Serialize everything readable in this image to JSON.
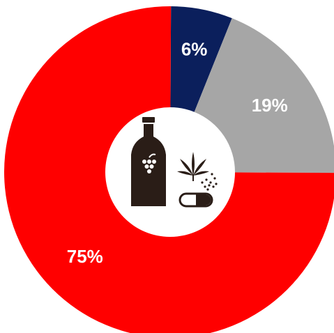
{
  "chart_data": {
    "type": "pie",
    "style": "donut",
    "slices": [
      {
        "label": "6%",
        "value": 6,
        "color": "#0b1f5c"
      },
      {
        "label": "19%",
        "value": 19,
        "color": "#a6a6a6"
      },
      {
        "label": "75%",
        "value": 75,
        "color": "#ff0000"
      }
    ],
    "title": "",
    "legend": "none",
    "center_icons": [
      "wine-bottle-icon",
      "cannabis-leaf-icon",
      "pill-icon"
    ],
    "icon_color": "#2a1d17"
  }
}
